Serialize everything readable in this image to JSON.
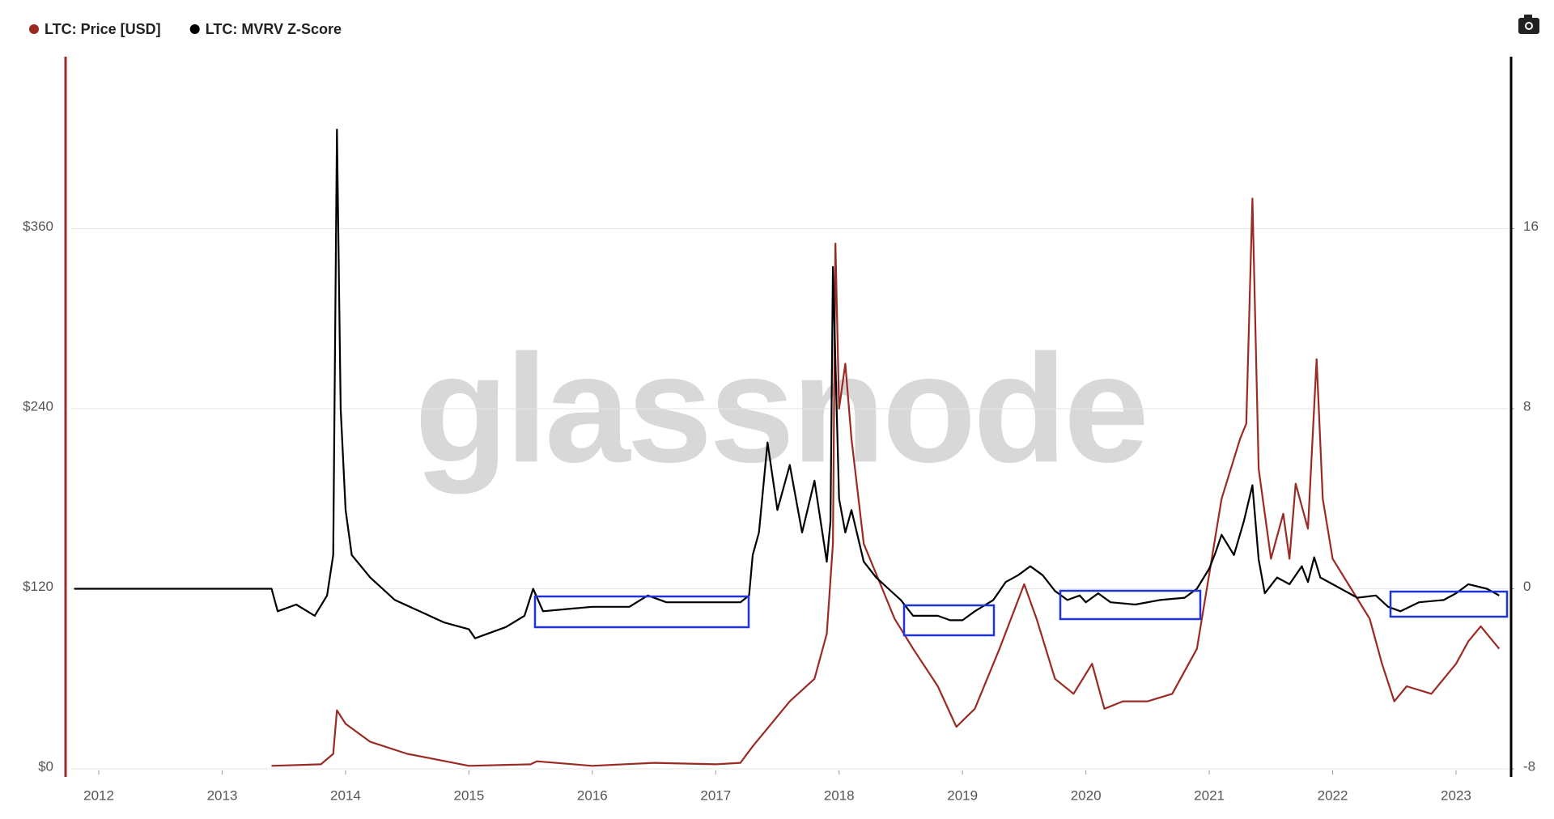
{
  "chart_data": {
    "type": "line",
    "watermark": "glassnode",
    "grid": true,
    "xlim": [
      2011.77,
      2023.42
    ],
    "xticks": [
      2012,
      2013,
      2014,
      2015,
      2016,
      2017,
      2018,
      2019,
      2020,
      2021,
      2022,
      2023
    ],
    "ylim": [
      0,
      480
    ],
    "yticks": [
      {
        "value": 0,
        "label": "$0"
      },
      {
        "value": 120,
        "label": "$120"
      },
      {
        "value": 240,
        "label": "$240"
      },
      {
        "value": 360,
        "label": "$360"
      }
    ],
    "y2lim": [
      -8,
      24
    ],
    "y2ticks": [
      -8,
      0,
      8,
      16
    ],
    "series": [
      {
        "name": "LTC: Price [USD]",
        "color": "#9b2a24",
        "x": [
          2013.4,
          2013.8,
          2013.9,
          2013.93,
          2014.0,
          2014.2,
          2014.5,
          2015.0,
          2015.5,
          2015.55,
          2016.0,
          2016.5,
          2017.0,
          2017.2,
          2017.3,
          2017.45,
          2017.6,
          2017.8,
          2017.9,
          2017.95,
          2017.97,
          2018.0,
          2018.05,
          2018.1,
          2018.2,
          2018.35,
          2018.45,
          2018.6,
          2018.8,
          2018.95,
          2019.1,
          2019.3,
          2019.5,
          2019.6,
          2019.75,
          2019.9,
          2020.05,
          2020.15,
          2020.3,
          2020.5,
          2020.7,
          2020.9,
          2021.0,
          2021.1,
          2021.25,
          2021.3,
          2021.35,
          2021.4,
          2021.5,
          2021.6,
          2021.65,
          2021.7,
          2021.8,
          2021.87,
          2021.92,
          2022.0,
          2022.15,
          2022.3,
          2022.4,
          2022.5,
          2022.6,
          2022.8,
          2023.0,
          2023.1,
          2023.2,
          2023.35
        ],
        "values": [
          2,
          3,
          10,
          39,
          30,
          18,
          10,
          2,
          3,
          5,
          2,
          4,
          3,
          4,
          15,
          30,
          45,
          60,
          90,
          150,
          350,
          240,
          270,
          220,
          150,
          120,
          100,
          80,
          55,
          28,
          40,
          80,
          123,
          100,
          60,
          50,
          70,
          40,
          45,
          45,
          50,
          80,
          130,
          180,
          220,
          230,
          380,
          200,
          140,
          170,
          140,
          190,
          160,
          273,
          180,
          140,
          120,
          100,
          70,
          45,
          55,
          50,
          70,
          85,
          95,
          80
        ]
      },
      {
        "name": "LTC: MVRV Z-Score",
        "color": "#000000",
        "axis": "y2",
        "x": [
          2011.8,
          2013.4,
          2013.45,
          2013.6,
          2013.75,
          2013.85,
          2013.9,
          2013.93,
          2013.96,
          2014.0,
          2014.05,
          2014.2,
          2014.4,
          2014.6,
          2014.8,
          2015.0,
          2015.05,
          2015.3,
          2015.45,
          2015.52,
          2015.6,
          2015.8,
          2016.0,
          2016.3,
          2016.45,
          2016.6,
          2016.9,
          2017.2,
          2017.27,
          2017.3,
          2017.35,
          2017.42,
          2017.5,
          2017.6,
          2017.7,
          2017.8,
          2017.9,
          2017.93,
          2017.95,
          2017.98,
          2018.0,
          2018.05,
          2018.1,
          2018.2,
          2018.3,
          2018.4,
          2018.5,
          2018.6,
          2018.8,
          2018.9,
          2019.0,
          2019.1,
          2019.25,
          2019.35,
          2019.45,
          2019.55,
          2019.65,
          2019.75,
          2019.85,
          2019.95,
          2020.0,
          2020.1,
          2020.2,
          2020.4,
          2020.6,
          2020.8,
          2020.9,
          2021.0,
          2021.05,
          2021.1,
          2021.2,
          2021.28,
          2021.35,
          2021.4,
          2021.45,
          2021.55,
          2021.65,
          2021.75,
          2021.8,
          2021.85,
          2021.9,
          2022.0,
          2022.2,
          2022.35,
          2022.45,
          2022.55,
          2022.7,
          2022.9,
          2023.0,
          2023.1,
          2023.25,
          2023.35
        ],
        "values": [
          0,
          0,
          -1.0,
          -0.7,
          -1.2,
          -0.3,
          1.5,
          20.4,
          8,
          3.5,
          1.5,
          0.5,
          -0.5,
          -1.0,
          -1.5,
          -1.8,
          -2.2,
          -1.7,
          -1.2,
          0.0,
          -1.0,
          -0.9,
          -0.8,
          -0.8,
          -0.3,
          -0.6,
          -0.6,
          -0.6,
          -0.3,
          1.5,
          2.5,
          6.5,
          3.5,
          5.5,
          2.5,
          4.8,
          1.2,
          3,
          14.3,
          8,
          4,
          2.5,
          3.5,
          1.2,
          0.5,
          0.0,
          -0.5,
          -1.2,
          -1.2,
          -1.4,
          -1.4,
          -1.0,
          -0.5,
          0.3,
          0.6,
          1.0,
          0.6,
          -0.1,
          -0.5,
          -0.3,
          -0.6,
          -0.2,
          -0.6,
          -0.7,
          -0.5,
          -0.4,
          0.0,
          0.9,
          1.6,
          2.4,
          1.5,
          3.0,
          4.6,
          1.3,
          -0.2,
          0.5,
          0.2,
          1.0,
          0.3,
          1.4,
          0.5,
          0.2,
          -0.4,
          -0.3,
          -0.8,
          -1.0,
          -0.6,
          -0.5,
          -0.2,
          0.2,
          0.0,
          -0.3
        ]
      }
    ]
  }
}
